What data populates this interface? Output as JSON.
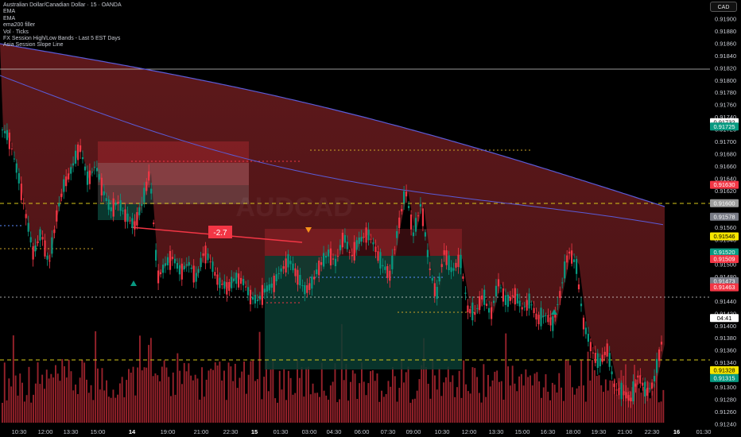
{
  "legend": {
    "title": "Australian Dollar/Canadian Dollar · 15 · OANDA",
    "indicators": [
      "EMA",
      "EMA",
      "ema200 filler",
      "Vol · Ticks",
      "FX Session High/Low Bands - Last 5 EST Days",
      "Asia Session Slope Line"
    ]
  },
  "currency_button": "CAD",
  "watermark": "AUDCAD",
  "annotation_label": "-2.7",
  "chart_data": {
    "type": "candlestick",
    "symbol": "AUDCAD",
    "interval": "15",
    "ylim": [
      0.91225,
      0.91915
    ],
    "y_ticks": [
      0.919,
      0.9188,
      0.9186,
      0.9184,
      0.9182,
      0.918,
      0.9178,
      0.9176,
      0.9174,
      0.9172,
      0.917,
      0.9168,
      0.9166,
      0.9164,
      0.9162,
      0.916,
      0.9158,
      0.9156,
      0.9154,
      0.9152,
      0.915,
      0.9148,
      0.9146,
      0.9144,
      0.9142,
      0.914,
      0.9138,
      0.9136,
      0.9134,
      0.9132,
      0.913,
      0.9128,
      0.9126,
      0.9124
    ],
    "x_ticks": [
      "10:30",
      "12:00",
      "13:30",
      "15:00",
      "14",
      "19:00",
      "21:00",
      "22:30",
      "15",
      "01:30",
      "03:00",
      "04:30",
      "06:00",
      "07:30",
      "09:00",
      "10:30",
      "12:00",
      "13:30",
      "15:00",
      "16:30",
      "18:00",
      "19:30",
      "21:00",
      "22:30",
      "16",
      "01:30"
    ],
    "bold_x_ticks": [
      "14",
      "15",
      "16"
    ],
    "price_labels": [
      {
        "text": "0.91732",
        "value": 0.91732,
        "bg": "#ffffff",
        "fg": "#000000"
      },
      {
        "text": "0.91725",
        "value": 0.91725,
        "bg": "#089981",
        "fg": "#ffffff"
      },
      {
        "text": "0.91630",
        "value": 0.9163,
        "bg": "#f23645",
        "fg": "#ffffff"
      },
      {
        "text": "0.91600",
        "value": 0.916,
        "bg": "#9e9e9e",
        "fg": "#ffffff"
      },
      {
        "text": "0.91578",
        "value": 0.91578,
        "bg": "#787b86",
        "fg": "#ffffff"
      },
      {
        "text": "0.91546",
        "value": 0.91546,
        "bg": "#f7e600",
        "fg": "#000000"
      },
      {
        "text": "0.91520",
        "value": 0.9152,
        "bg": "#089981",
        "fg": "#ffffff"
      },
      {
        "text": "0.91509",
        "value": 0.91509,
        "bg": "#f23645",
        "fg": "#ffffff"
      },
      {
        "text": "0.91473",
        "value": 0.91473,
        "bg": "#787b86",
        "fg": "#ffffff"
      },
      {
        "text": "0.91463",
        "value": 0.91463,
        "bg": "#f23645",
        "fg": "#ffffff"
      },
      {
        "text": "04:41",
        "value": 0.91413,
        "bg": "#ffffff",
        "fg": "#000000"
      },
      {
        "text": "0.91328",
        "value": 0.91328,
        "bg": "#f7e600",
        "fg": "#000000"
      },
      {
        "text": "0.91315",
        "value": 0.91315,
        "bg": "#089981",
        "fg": "#ffffff"
      }
    ],
    "close_series": [
      0.9172,
      0.917,
      0.9165,
      0.9158,
      0.9152,
      0.9155,
      0.915,
      0.9158,
      0.9163,
      0.9166,
      0.9169,
      0.9164,
      0.9166,
      0.9162,
      0.9159,
      0.916,
      0.9158,
      0.9156,
      0.916,
      0.9165,
      0.9148,
      0.915,
      0.9151,
      0.9149,
      0.915,
      0.9148,
      0.9152,
      0.915,
      0.9147,
      0.9146,
      0.9148,
      0.9147,
      0.9145,
      0.9144,
      0.9146,
      0.9147,
      0.9149,
      0.9151,
      0.9148,
      0.9146,
      0.9147,
      0.915,
      0.9152,
      0.915,
      0.9155,
      0.9151,
      0.9154,
      0.9155,
      0.9153,
      0.915,
      0.9148,
      0.9156,
      0.9162,
      0.9155,
      0.916,
      0.915,
      0.9145,
      0.9152,
      0.9149,
      0.9151,
      0.9143,
      0.9142,
      0.9145,
      0.9142,
      0.9147,
      0.9144,
      0.9145,
      0.9143,
      0.9144,
      0.9141,
      0.9142,
      0.914,
      0.9146,
      0.9152,
      0.915,
      0.914,
      0.9136,
      0.9134,
      0.9136,
      0.913,
      0.9129,
      0.9128,
      0.9132,
      0.9129,
      0.9131,
      0.9137
    ]
  },
  "colors": {
    "up": "#089981",
    "down": "#f23645",
    "ema_line": "#5b5bd6",
    "ema_fill": "#7a1f22",
    "volume": "#b22833",
    "level_line": "#d6c81a"
  }
}
